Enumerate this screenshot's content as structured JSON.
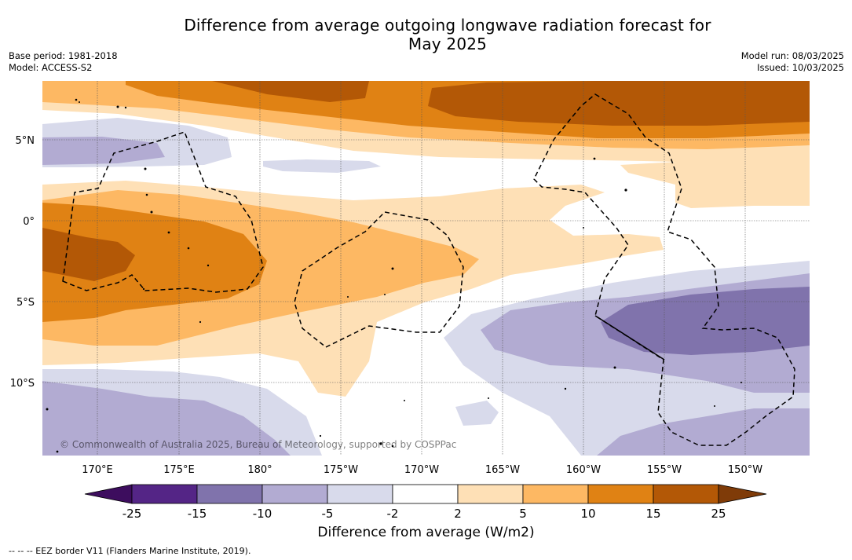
{
  "title_line1": "Difference from average outgoing longwave radiation forecast for",
  "title_line2": "May 2025",
  "base_period": "Base period: 1981-2018",
  "model": "Model: ACCESS-S2",
  "model_run": "Model run: 08/03/2025",
  "issued": "Issued: 10/03/2025",
  "copyright": "© Commonwealth of Australia 2025, Bureau of Meteorology, supported by COSPPac",
  "lat_labels": [
    "5°N",
    "0°",
    "5°S",
    "10°S"
  ],
  "lon_labels": [
    "170°E",
    "175°E",
    "180°",
    "175°W",
    "170°W",
    "165°W",
    "160°W",
    "155°W",
    "150°W"
  ],
  "colorbar": {
    "label": "Difference from average (W/m2)",
    "ticks": [
      "-25",
      "-15",
      "-10",
      "-5",
      "-2",
      "2",
      "5",
      "10",
      "15",
      "25"
    ],
    "colors": [
      "#3d0d5e",
      "#542586",
      "#8073ac",
      "#b2abd2",
      "#d8daeb",
      "#ffffff",
      "#fee0b6",
      "#fdb863",
      "#e08214",
      "#b35806",
      "#7f3b08"
    ]
  },
  "footnote": "-- -- -- EEZ border V11 (Flanders Marine Institute, 2019)."
}
